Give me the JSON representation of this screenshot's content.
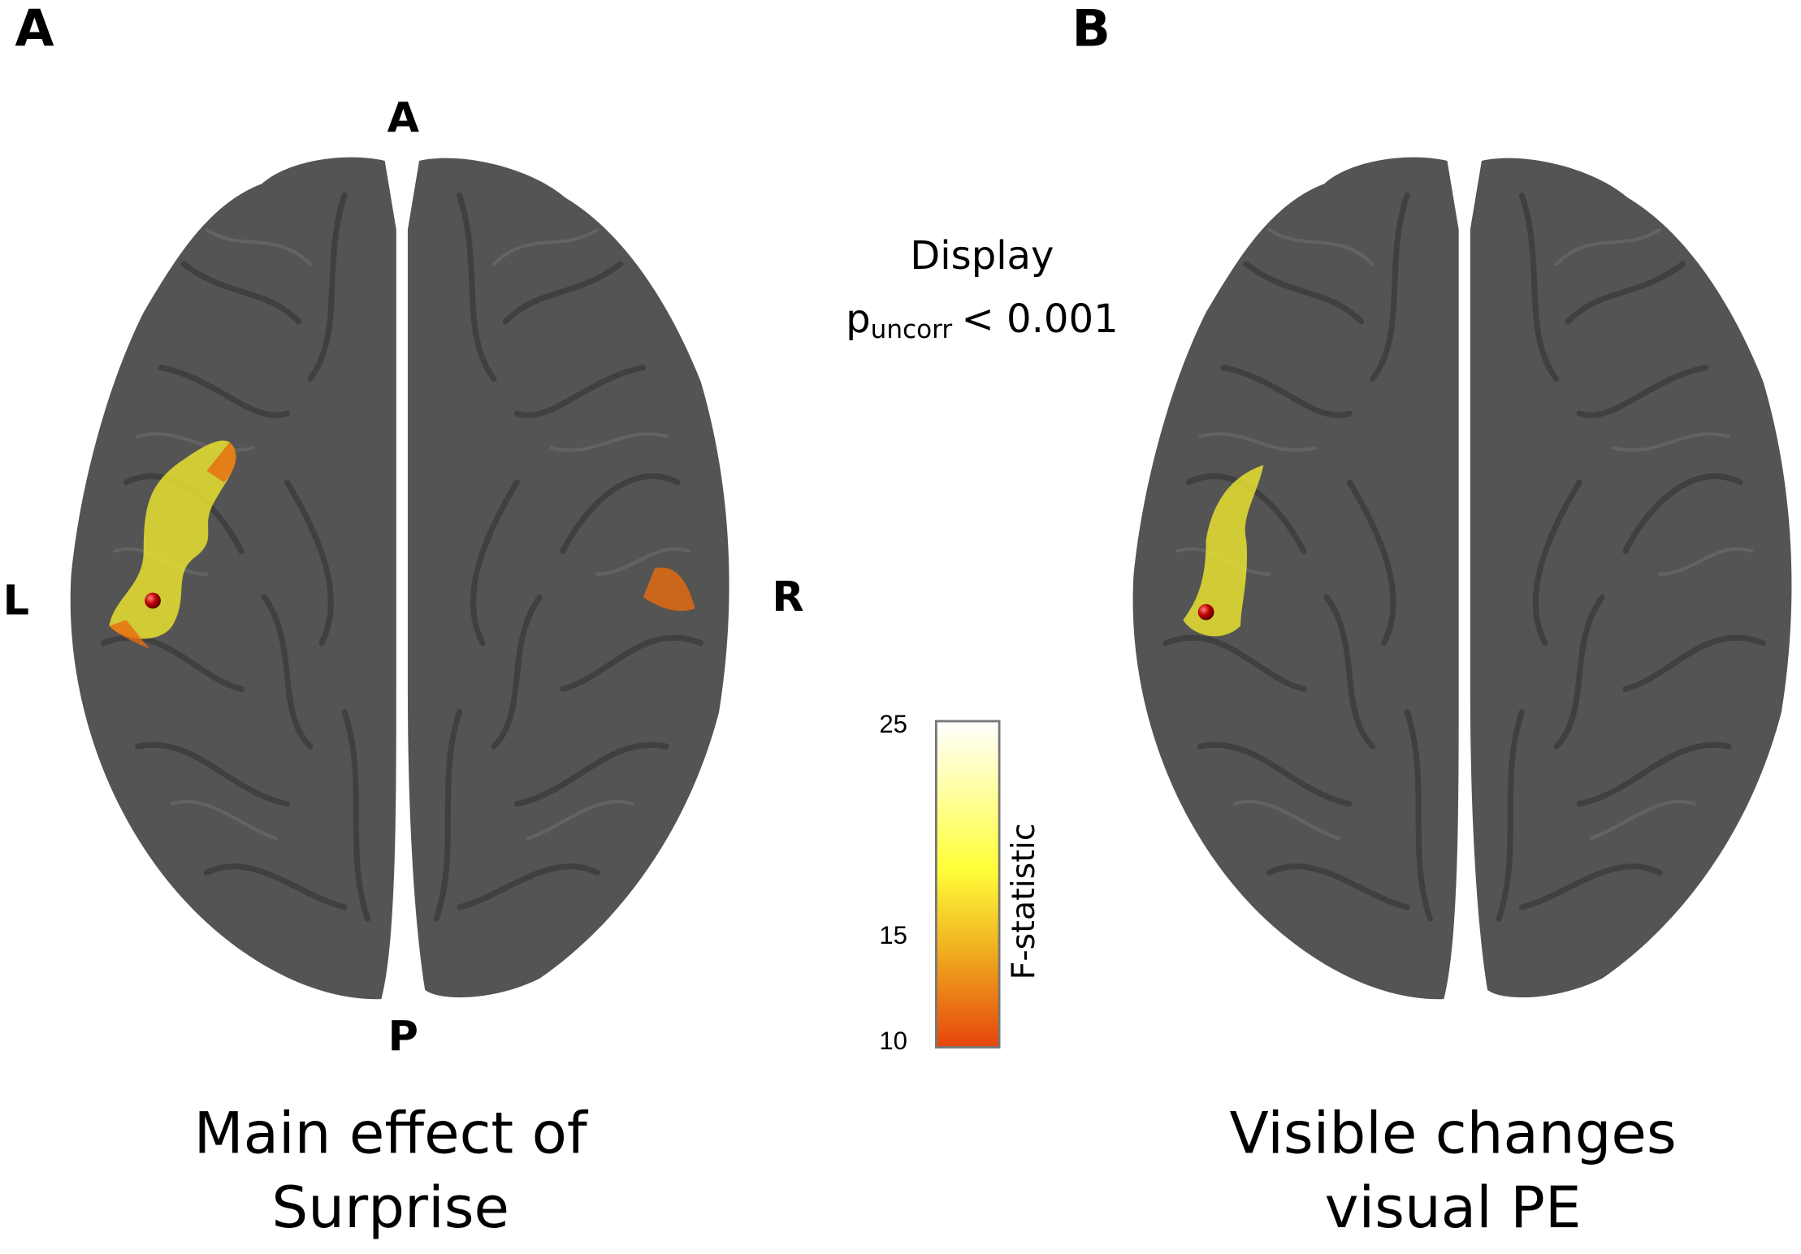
{
  "panels": [
    {
      "label": "A",
      "caption": [
        "Main effect of",
        "Surprise"
      ]
    },
    {
      "label": "B",
      "caption": [
        "Visible changes",
        "visual PE"
      ]
    }
  ],
  "orientation": {
    "anterior": "A",
    "posterior": "P",
    "left": "L",
    "right": "R"
  },
  "threshold": {
    "line1": "Display",
    "p": "p",
    "subscript": "uncorr",
    "rest": "< 0.001"
  },
  "colorbar": {
    "label": "F-statistic",
    "range": [
      10,
      25
    ],
    "ticks": [
      10,
      15,
      25
    ]
  }
}
